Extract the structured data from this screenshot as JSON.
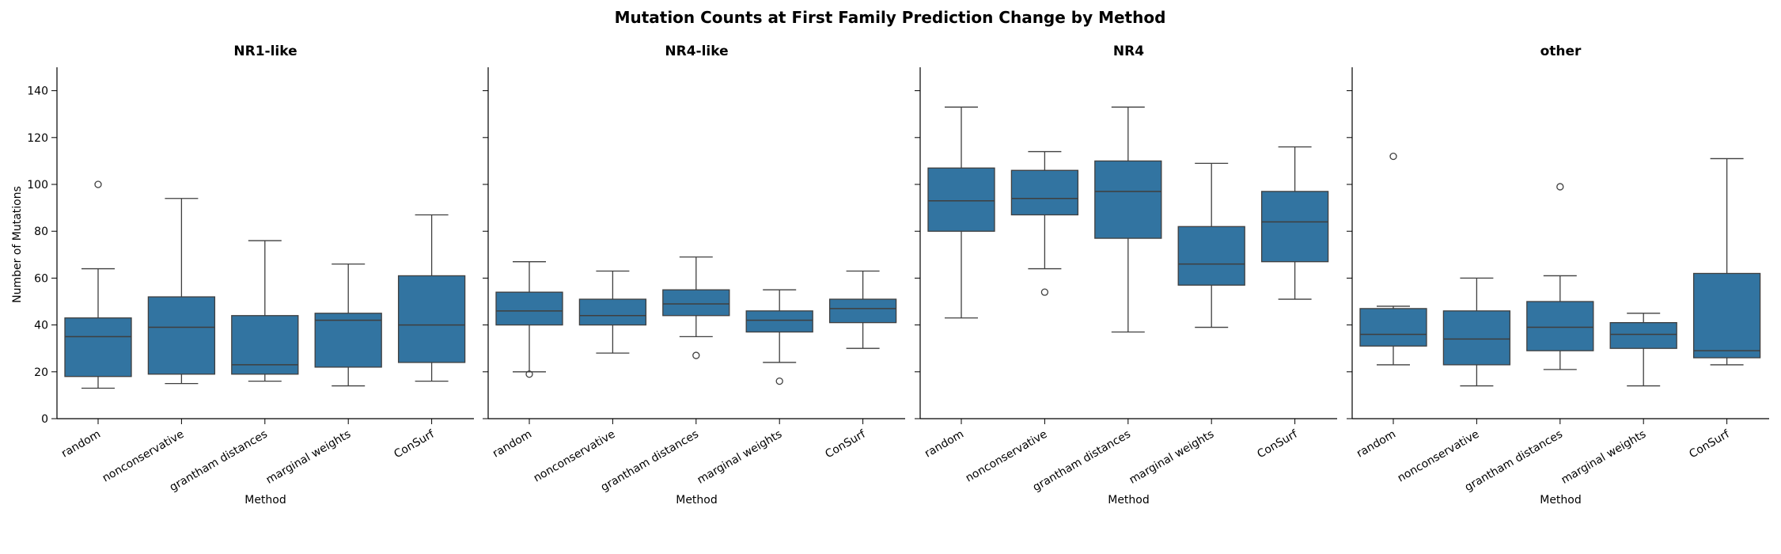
{
  "title": "Mutation Counts at First Family Prediction Change by Method",
  "chart_data": {
    "type": "box",
    "ylabel": "Number of Mutations",
    "xlabel": "Method",
    "ylim": [
      0,
      150
    ],
    "yticks": [
      0,
      20,
      40,
      60,
      80,
      100,
      120,
      140
    ],
    "categories": [
      "random",
      "nonconservative",
      "grantham distances",
      "marginal weights",
      "ConSurf"
    ],
    "box_color": "#3274a1",
    "grid": false,
    "panels": [
      {
        "title": "NR1-like",
        "boxes": [
          {
            "whislo": 13,
            "q1": 18,
            "med": 35,
            "q3": 43,
            "whishi": 64,
            "fliers": [
              100
            ]
          },
          {
            "whislo": 15,
            "q1": 19,
            "med": 39,
            "q3": 52,
            "whishi": 94,
            "fliers": []
          },
          {
            "whislo": 16,
            "q1": 19,
            "med": 23,
            "q3": 44,
            "whishi": 76,
            "fliers": []
          },
          {
            "whislo": 14,
            "q1": 22,
            "med": 42,
            "q3": 45,
            "whishi": 66,
            "fliers": []
          },
          {
            "whislo": 16,
            "q1": 24,
            "med": 40,
            "q3": 61,
            "whishi": 87,
            "fliers": []
          }
        ]
      },
      {
        "title": "NR4-like",
        "boxes": [
          {
            "whislo": 20,
            "q1": 40,
            "med": 46,
            "q3": 54,
            "whishi": 67,
            "fliers": [
              19
            ]
          },
          {
            "whislo": 28,
            "q1": 40,
            "med": 44,
            "q3": 51,
            "whishi": 63,
            "fliers": []
          },
          {
            "whislo": 35,
            "q1": 44,
            "med": 49,
            "q3": 55,
            "whishi": 69,
            "fliers": [
              27
            ]
          },
          {
            "whislo": 24,
            "q1": 37,
            "med": 42,
            "q3": 46,
            "whishi": 55,
            "fliers": [
              16
            ]
          },
          {
            "whislo": 30,
            "q1": 41,
            "med": 47,
            "q3": 51,
            "whishi": 63,
            "fliers": []
          }
        ]
      },
      {
        "title": "NR4",
        "boxes": [
          {
            "whislo": 43,
            "q1": 80,
            "med": 93,
            "q3": 107,
            "whishi": 133,
            "fliers": []
          },
          {
            "whislo": 64,
            "q1": 87,
            "med": 94,
            "q3": 106,
            "whishi": 114,
            "fliers": [
              54
            ]
          },
          {
            "whislo": 37,
            "q1": 77,
            "med": 97,
            "q3": 110,
            "whishi": 133,
            "fliers": []
          },
          {
            "whislo": 39,
            "q1": 57,
            "med": 66,
            "q3": 82,
            "whishi": 109,
            "fliers": []
          },
          {
            "whislo": 51,
            "q1": 67,
            "med": 84,
            "q3": 97,
            "whishi": 116,
            "fliers": []
          }
        ]
      },
      {
        "title": "other",
        "boxes": [
          {
            "whislo": 23,
            "q1": 31,
            "med": 36,
            "q3": 47,
            "whishi": 48,
            "fliers": [
              112
            ]
          },
          {
            "whislo": 14,
            "q1": 23,
            "med": 34,
            "q3": 46,
            "whishi": 60,
            "fliers": []
          },
          {
            "whislo": 21,
            "q1": 29,
            "med": 39,
            "q3": 50,
            "whishi": 61,
            "fliers": [
              99
            ]
          },
          {
            "whislo": 14,
            "q1": 30,
            "med": 36,
            "q3": 41,
            "whishi": 45,
            "fliers": []
          },
          {
            "whislo": 23,
            "q1": 26,
            "med": 29,
            "q3": 62,
            "whishi": 111,
            "fliers": []
          }
        ]
      }
    ]
  }
}
